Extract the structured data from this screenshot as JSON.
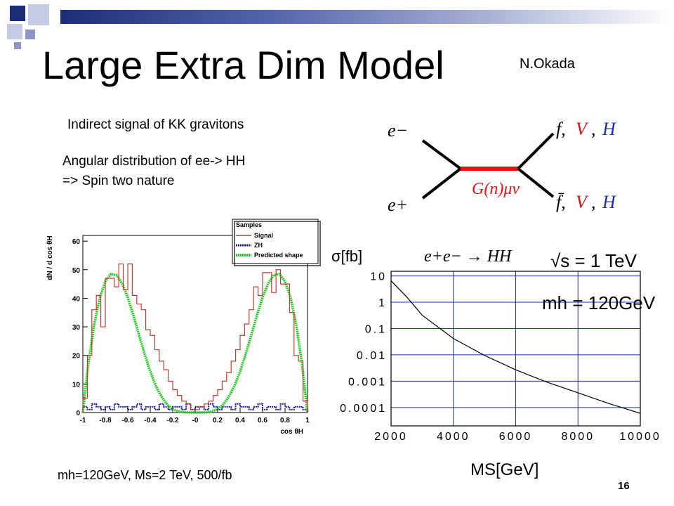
{
  "slide": {
    "title": "Large Extra Dim Model",
    "author": "N.Okada",
    "line1": "Indirect signal of KK gravitons",
    "line2": "Angular distribution of ee-> HH",
    "line3": "=> Spin two nature",
    "footer_text": "mh=120GeV, Ms=2 TeV, 500/fb",
    "slide_number": "16"
  },
  "feynman": {
    "in_top": "e−",
    "in_bottom": "e+",
    "propagator": "G(n)μν",
    "out_top_f": "f,",
    "out_top_v": "V",
    "out_top_h": "H",
    "out_bottom_f": "f̄,",
    "out_bottom_v": "V",
    "out_bottom_h": "H",
    "sep": ",",
    "colors": {
      "line": "#000000",
      "propagator": "#ee1111",
      "V": "#d0101a",
      "H": "#1c2fb0"
    }
  },
  "chart_data": [
    {
      "type": "line",
      "xlabel": "cos θH",
      "ylabel": "dN / d cos θH",
      "xlim": [
        -1,
        1
      ],
      "ylim": [
        0,
        62
      ],
      "x_ticks": [
        "-1",
        "-0.8",
        "-0.6",
        "-0.4",
        "-0.2",
        "-0",
        "0.2",
        "0.4",
        "0.6",
        "0.8",
        "1"
      ],
      "y_ticks": [
        "0",
        "10",
        "20",
        "30",
        "40",
        "50",
        "60"
      ],
      "legend_title": "Samples",
      "legend_position": "top-right",
      "series": [
        {
          "name": "Signal",
          "style": "step",
          "color": "#c33c2f",
          "bin_width": 0.04,
          "values": [
            5,
            20,
            36,
            41,
            30,
            47,
            47,
            44,
            52,
            43,
            52,
            41,
            38,
            36,
            29,
            27,
            22,
            18,
            15,
            11,
            8,
            6,
            4,
            3,
            1,
            1,
            2,
            3,
            4,
            6,
            8,
            11,
            14,
            18,
            22,
            27,
            31,
            36,
            44,
            41,
            49,
            49,
            42,
            50,
            45,
            45,
            35,
            20,
            18,
            4
          ]
        },
        {
          "name": "ZH",
          "style": "step",
          "color": "#1a1aa0",
          "bin_width": 0.04,
          "values": [
            2,
            1,
            3,
            2,
            1,
            2,
            1,
            3,
            2,
            2,
            1,
            2,
            3,
            1,
            2,
            2,
            1,
            3,
            2,
            1,
            2,
            2,
            1,
            3,
            1,
            2,
            2,
            1,
            3,
            2,
            1,
            2,
            2,
            1,
            3,
            2,
            2,
            1,
            2,
            3,
            1,
            2,
            2,
            1,
            3,
            2,
            1,
            2,
            2,
            1
          ]
        },
        {
          "name": "Predicted shape",
          "style": "curve",
          "color": "#22cc22",
          "x": [
            -1,
            -0.95,
            -0.9,
            -0.85,
            -0.8,
            -0.75,
            -0.7,
            -0.65,
            -0.6,
            -0.55,
            -0.5,
            -0.45,
            -0.4,
            -0.35,
            -0.3,
            -0.25,
            -0.2,
            -0.15,
            -0.1,
            -0.05,
            0,
            0.05,
            0.1,
            0.15,
            0.2,
            0.25,
            0.3,
            0.35,
            0.4,
            0.45,
            0.5,
            0.55,
            0.6,
            0.65,
            0.7,
            0.75,
            0.8,
            0.85,
            0.9,
            0.95,
            1
          ],
          "y": [
            0,
            17.3,
            30.6,
            40.1,
            45.9,
            48.5,
            48.1,
            45.2,
            40.3,
            34,
            27.2,
            20.5,
            14.4,
            9.3,
            5.6,
            2.8,
            1.2,
            0.4,
            0.1,
            0,
            0,
            0,
            0.1,
            0.4,
            1.2,
            2.8,
            5.6,
            9.3,
            14.4,
            20.5,
            27.2,
            34,
            40.3,
            45.2,
            48.1,
            48.5,
            45.9,
            40.1,
            30.6,
            17.3,
            0
          ]
        }
      ]
    },
    {
      "type": "line",
      "xlabel": "MS[GeV]",
      "ylabel": "σ[fb]",
      "y_scale": "log",
      "xlim": [
        2000,
        10000
      ],
      "ylim": [
        2e-05,
        15
      ],
      "x_ticks": [
        "2000",
        "4000",
        "6000",
        "8000",
        "10000"
      ],
      "y_ticks": [
        "10",
        "1",
        "0.1",
        "0.01",
        "0.001",
        "0.0001"
      ],
      "grid": true,
      "annotations": [
        "e+e− → HH",
        "√s = 1 TeV",
        "mh = 120GeV"
      ],
      "series": [
        {
          "x": [
            2000,
            2500,
            3000,
            4000,
            5000,
            6000,
            7000,
            8000,
            9000,
            10000
          ],
          "y": [
            6.5,
            1.6,
            0.32,
            0.042,
            0.0095,
            0.0027,
            0.00092,
            0.00036,
            0.00014,
            6e-05
          ]
        }
      ]
    }
  ]
}
